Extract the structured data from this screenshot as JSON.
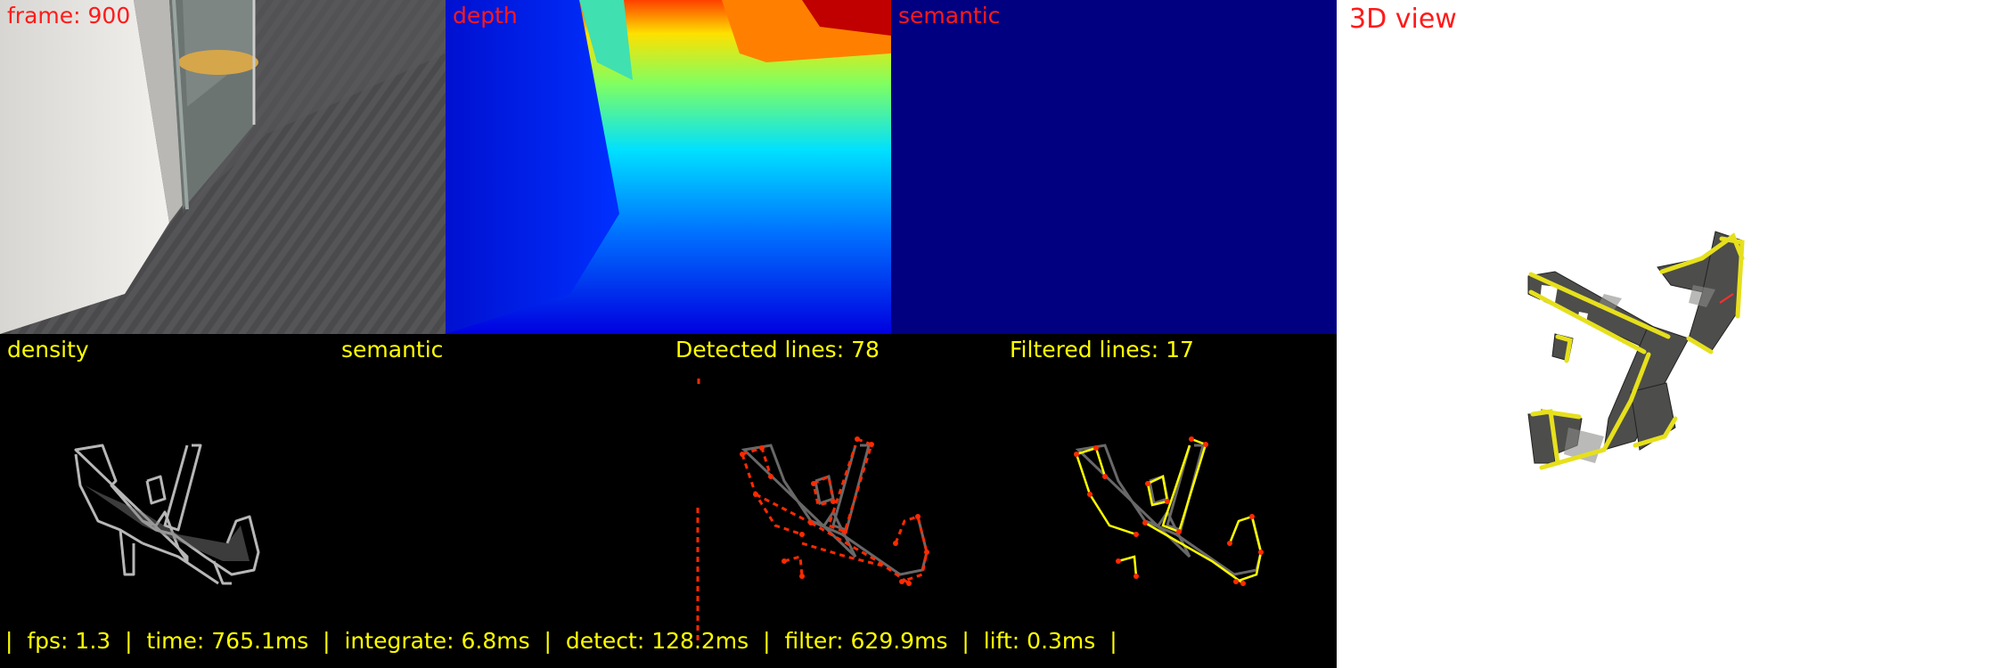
{
  "panels": {
    "frame": {
      "label": "frame: 900"
    },
    "depth": {
      "label": "depth"
    },
    "semantic_top": {
      "label": "semantic"
    },
    "view3d": {
      "label": "3D view"
    },
    "density": {
      "label": "density"
    },
    "semantic_bottom": {
      "label": "semantic"
    },
    "detected": {
      "label": "Detected lines: 78"
    },
    "filtered": {
      "label": "Filtered lines: 17"
    }
  },
  "status": {
    "sep": "|",
    "fps": "fps: 1.3",
    "time": "time: 765.1ms",
    "integrate": "integrate: 6.8ms",
    "detect": "detect: 128.2ms",
    "filter": "filter: 629.9ms",
    "lift": "lift: 0.3ms"
  },
  "colors": {
    "label_red": "#ff1a1a",
    "label_yellow": "#ffff00",
    "semantic_fill": "#000080",
    "detected_line": "#ff2a00",
    "filtered_line": "#ffff00",
    "view3d_background": "#ffffff"
  }
}
